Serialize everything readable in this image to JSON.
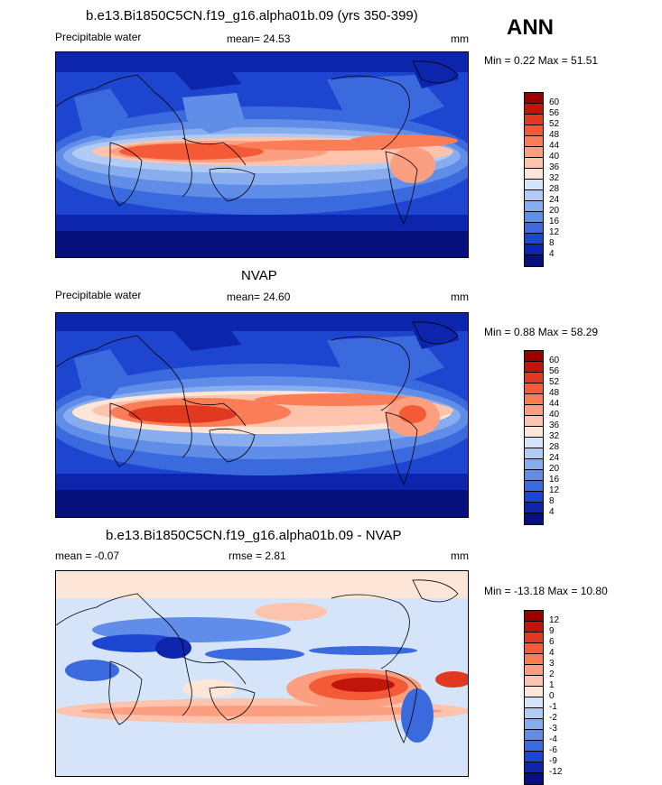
{
  "season": "ANN",
  "panels": [
    {
      "title": "b.e13.Bi1850C5CN.f19_g16.alpha01b.09 (yrs 350-399)",
      "left_label": "Precipitable water",
      "stat_label": "mean=  24.53",
      "units": "mm",
      "minmax": "Min =   0.22 Max =  51.51",
      "levels": [
        "60",
        "56",
        "52",
        "48",
        "44",
        "40",
        "36",
        "32",
        "28",
        "24",
        "20",
        "16",
        "12",
        "8",
        "4"
      ],
      "colors": [
        "#9b0000",
        "#c0150b",
        "#e0391f",
        "#f55a36",
        "#fb7d58",
        "#fc9f81",
        "#fdc3ac",
        "#fde6d8",
        "#d6e4fa",
        "#b1cbf5",
        "#88adef",
        "#5f8de8",
        "#3a6ade",
        "#1e45d0",
        "#0d25ad",
        "#06107d"
      ]
    },
    {
      "title": "NVAP",
      "left_label": "Precipitable water",
      "stat_label": "mean=  24.60",
      "units": "mm",
      "minmax": "Min =   0.88 Max =  58.29",
      "levels": [
        "60",
        "56",
        "52",
        "48",
        "44",
        "40",
        "36",
        "32",
        "28",
        "24",
        "20",
        "16",
        "12",
        "8",
        "4"
      ],
      "colors": [
        "#9b0000",
        "#c0150b",
        "#e0391f",
        "#f55a36",
        "#fb7d58",
        "#fc9f81",
        "#fdc3ac",
        "#fde6d8",
        "#d6e4fa",
        "#b1cbf5",
        "#88adef",
        "#5f8de8",
        "#3a6ade",
        "#1e45d0",
        "#0d25ad",
        "#06107d"
      ]
    },
    {
      "title": "b.e13.Bi1850C5CN.f19_g16.alpha01b.09 - NVAP",
      "left_label": "mean =  -0.07",
      "stat_label": "rmse =   2.81",
      "units": "mm",
      "minmax": "Min = -13.18 Max =  10.80",
      "levels": [
        "12",
        "9",
        "6",
        "4",
        "3",
        "2",
        "1",
        "0",
        "-1",
        "-2",
        "-3",
        "-4",
        "-6",
        "-9",
        "-12"
      ],
      "colors": [
        "#9b0000",
        "#c0150b",
        "#e0391f",
        "#f55a36",
        "#fb7d58",
        "#fc9f81",
        "#fdc3ac",
        "#fde6d8",
        "#d6e4fa",
        "#b1cbf5",
        "#88adef",
        "#5f8de8",
        "#3a6ade",
        "#1e45d0",
        "#0d25ad",
        "#06107d"
      ]
    }
  ]
}
